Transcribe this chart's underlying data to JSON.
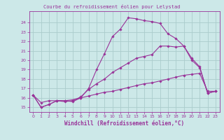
{
  "title": "Courbe du refroidissement éolien pour Lelystad",
  "xlabel": "Windchill (Refroidissement éolien,°C)",
  "bg_color": "#cce8e8",
  "grid_color": "#aacccc",
  "line_color": "#993399",
  "xlim": [
    -0.5,
    23.5
  ],
  "ylim": [
    14.5,
    25.2
  ],
  "xticks": [
    0,
    1,
    2,
    3,
    4,
    5,
    6,
    7,
    8,
    9,
    10,
    11,
    12,
    13,
    14,
    15,
    16,
    17,
    18,
    19,
    20,
    21,
    22,
    23
  ],
  "yticks": [
    15,
    16,
    17,
    18,
    19,
    20,
    21,
    22,
    23,
    24
  ],
  "line1_x": [
    0,
    1,
    2,
    3,
    4,
    5,
    6,
    7,
    8,
    9,
    10,
    11,
    12,
    13,
    14,
    15,
    16,
    17,
    18,
    19,
    20,
    21,
    22,
    23
  ],
  "line1_y": [
    16.3,
    15.0,
    15.3,
    15.7,
    15.7,
    15.6,
    16.0,
    17.0,
    19.0,
    20.7,
    22.5,
    23.3,
    24.5,
    24.4,
    24.2,
    24.1,
    23.9,
    22.8,
    22.3,
    21.5,
    20.0,
    19.2,
    16.5,
    16.7
  ],
  "line2_x": [
    0,
    1,
    2,
    3,
    4,
    5,
    6,
    7,
    8,
    9,
    10,
    11,
    12,
    13,
    14,
    15,
    16,
    17,
    18,
    19,
    20,
    21,
    22,
    23
  ],
  "line2_y": [
    16.3,
    15.0,
    15.3,
    15.7,
    15.6,
    15.7,
    16.1,
    16.9,
    17.5,
    18.0,
    18.7,
    19.2,
    19.7,
    20.2,
    20.4,
    20.6,
    21.5,
    21.5,
    21.4,
    21.5,
    20.2,
    19.3,
    16.5,
    16.7
  ],
  "line3_x": [
    0,
    1,
    2,
    3,
    4,
    5,
    6,
    7,
    8,
    9,
    10,
    11,
    12,
    13,
    14,
    15,
    16,
    17,
    18,
    19,
    20,
    21,
    22,
    23
  ],
  "line3_y": [
    16.3,
    15.5,
    15.7,
    15.7,
    15.7,
    15.8,
    16.0,
    16.2,
    16.4,
    16.6,
    16.7,
    16.9,
    17.1,
    17.3,
    17.5,
    17.6,
    17.8,
    18.0,
    18.2,
    18.4,
    18.5,
    18.6,
    16.7,
    16.7
  ]
}
